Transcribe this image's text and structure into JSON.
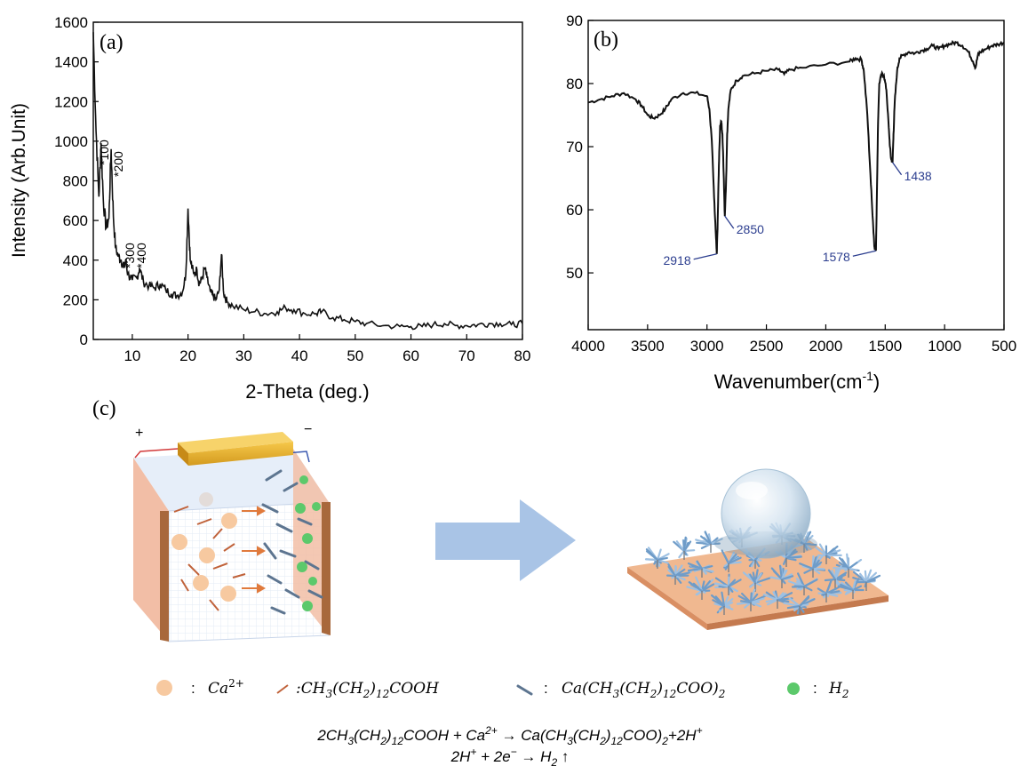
{
  "chart_data": [
    {
      "panel": "(a)",
      "type": "line",
      "xlabel": "2-Theta (deg.)",
      "ylabel": "Intensity (Arb.Unit)",
      "xlim": [
        3,
        80
      ],
      "ylim": [
        0,
        1600
      ],
      "xticks": [
        10,
        20,
        30,
        40,
        50,
        60,
        70,
        80
      ],
      "yticks": [
        0,
        200,
        400,
        600,
        800,
        1000,
        1200,
        1400,
        1600
      ],
      "x": [
        3,
        3.5,
        4,
        4.4,
        4.8,
        5.3,
        5.8,
        6.2,
        6.6,
        7.0,
        7.5,
        8,
        8.5,
        8.8,
        9.2,
        10,
        10.8,
        11.3,
        12,
        13,
        14,
        15,
        16,
        17,
        18,
        19,
        19.6,
        20.0,
        20.4,
        21,
        21.6,
        22,
        22.4,
        23,
        23.4,
        24,
        24.5,
        25,
        25.6,
        26.0,
        26.4,
        27,
        28,
        30,
        32,
        34,
        36,
        37.5,
        39,
        41,
        43,
        44,
        46,
        48,
        50,
        52,
        55,
        58,
        60,
        62,
        64,
        66,
        68,
        70,
        72,
        74,
        76,
        78,
        80
      ],
      "values": [
        1550,
        1050,
        720,
        990,
        700,
        560,
        610,
        960,
        620,
        460,
        420,
        400,
        360,
        400,
        330,
        300,
        310,
        360,
        290,
        270,
        260,
        280,
        250,
        230,
        220,
        240,
        330,
        660,
        400,
        330,
        350,
        280,
        300,
        360,
        310,
        240,
        220,
        200,
        250,
        430,
        230,
        190,
        170,
        150,
        140,
        130,
        140,
        160,
        150,
        130,
        130,
        140,
        110,
        100,
        90,
        80,
        70,
        65,
        65,
        65,
        75,
        80,
        70,
        70,
        75,
        80,
        80,
        75,
        80
      ]
    },
    {
      "panel": "(b)",
      "type": "line",
      "xlabel": "Wavenumber(cm",
      "xlabel_sup": "-1",
      "xlabel_end": ")",
      "xlim": [
        4000,
        500
      ],
      "ylim": [
        41,
        90
      ],
      "xticks": [
        4000,
        3500,
        3000,
        2500,
        2000,
        1500,
        1000,
        500
      ],
      "yticks": [
        50,
        60,
        70,
        80,
        90
      ],
      "x": [
        4000,
        3900,
        3800,
        3700,
        3600,
        3550,
        3500,
        3450,
        3400,
        3350,
        3300,
        3200,
        3100,
        3000,
        2980,
        2960,
        2940,
        2925,
        2918,
        2910,
        2900,
        2890,
        2880,
        2870,
        2860,
        2850,
        2840,
        2830,
        2820,
        2800,
        2750,
        2700,
        2600,
        2500,
        2400,
        2350,
        2300,
        2200,
        2000,
        1800,
        1750,
        1700,
        1680,
        1650,
        1620,
        1600,
        1590,
        1578,
        1570,
        1560,
        1550,
        1530,
        1510,
        1490,
        1470,
        1460,
        1450,
        1438,
        1430,
        1420,
        1400,
        1380,
        1350,
        1300,
        1250,
        1200,
        1150,
        1100,
        1050,
        1000,
        950,
        900,
        850,
        800,
        760,
        740,
        720,
        700,
        650,
        600,
        550,
        500
      ],
      "values": [
        77,
        77.5,
        78,
        78.5,
        77.5,
        76.5,
        75,
        74.5,
        75,
        76,
        77.5,
        78.5,
        78.5,
        78,
        76,
        71,
        62,
        56,
        53,
        58,
        67,
        73,
        74,
        72,
        66,
        59,
        64,
        72,
        76,
        79,
        80.5,
        81.2,
        81.6,
        82,
        82.2,
        81.5,
        82.2,
        82.5,
        83,
        83.5,
        84,
        83.8,
        82,
        75,
        64,
        57,
        54,
        53.5,
        62,
        74,
        80,
        81.5,
        81.2,
        79,
        73,
        70,
        68,
        67.5,
        72,
        77,
        82,
        84,
        84.5,
        85,
        84.8,
        85.2,
        85.5,
        86,
        85.5,
        86,
        86.3,
        86.5,
        86,
        85,
        83.5,
        82.5,
        84.5,
        85,
        85.5,
        86,
        86.2,
        86.5
      ],
      "annotations": [
        "2918",
        "2850",
        "1578",
        "1438"
      ]
    }
  ],
  "panel_c": {
    "label": "(c)",
    "plus": "+",
    "minus": "−",
    "legend": [
      "Ca2+",
      "CH3(CH2)12COOH",
      "Ca(CH3(CH2)12COO)2",
      "H2"
    ]
  },
  "colors": {
    "line": "#111111",
    "annotation": "#2c3e8f",
    "ca_ion": "#f7c9a0",
    "acid": "#c0623a",
    "salt": "#5d7590",
    "h2": "#5cc96b",
    "arrow": "#a9c4e6",
    "electrode": "#f2bea6"
  }
}
